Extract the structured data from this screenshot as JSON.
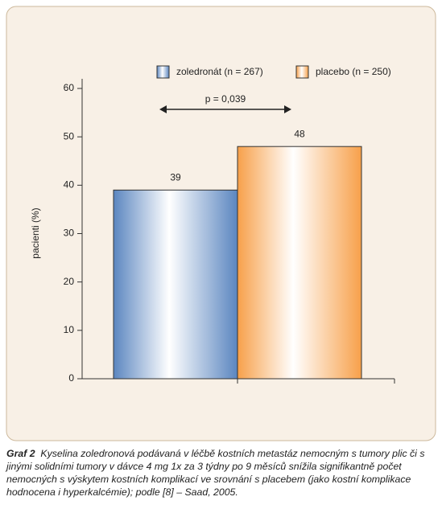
{
  "chart_data": {
    "type": "bar",
    "categories": [
      null
    ],
    "series": [
      {
        "name": "zoledronát (n = 267)",
        "color": "#5b86c0",
        "values": [
          39
        ]
      },
      {
        "name": "placebo (n = 250)",
        "color": "#f7a04a",
        "values": [
          48
        ]
      }
    ],
    "y_label": "pacienti (%)",
    "annotation": "p = 0,039",
    "ylim": [
      0,
      60
    ],
    "yticks": [
      0,
      10,
      20,
      30,
      40,
      50,
      60
    ],
    "legend": "top"
  },
  "caption": {
    "label": "Graf 2",
    "text": "Kyselina zoledronová podávaná v léčbě kostních metastáz nemocným s tumory plic či s jinými solidními tumory v dávce 4 mg 1x za 3 týdny po 9 měsíců snížila signifikantně počet nemocných s výskytem kostních komplikací ve srovnání s placebem (jako kostní komplikace hodnocena i hyperkalcémie); podle [8] – Saad, 2005."
  }
}
